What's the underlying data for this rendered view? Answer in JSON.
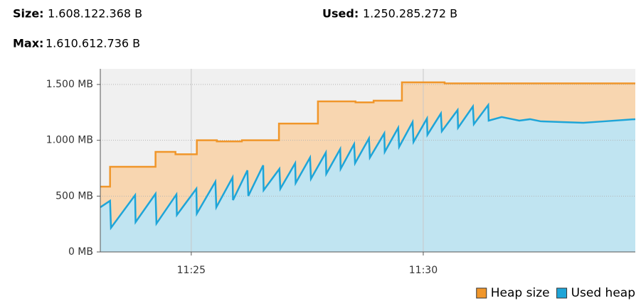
{
  "header": {
    "size_label": "Size:",
    "size_value": "1.608.122.368 B",
    "used_label": "Used:",
    "used_value": "1.250.285.272 B",
    "max_label": "Max:",
    "max_value": "1.610.612.736 B"
  },
  "chart_data": {
    "type": "line",
    "area": true,
    "xlim": [
      683.04,
      694.57
    ],
    "xticks": [
      {
        "value": 685,
        "label": "11:25"
      },
      {
        "value": 690,
        "label": "11:30"
      }
    ],
    "ylim": [
      0,
      1640
    ],
    "yticks": [
      {
        "value": 0,
        "label": "0 MB"
      },
      {
        "value": 500,
        "label": "500 MB"
      },
      {
        "value": 1000,
        "label": "1.000 MB"
      },
      {
        "value": 1500,
        "label": "1.500 MB"
      }
    ],
    "grid": true,
    "legend": "bottom-right",
    "series": [
      {
        "name": "Heap size",
        "color": "#f0962a",
        "fill": "#f8d3a8",
        "x": [
          683.04,
          683.25,
          683.25,
          684.23,
          684.23,
          684.66,
          684.66,
          685.12,
          685.12,
          685.55,
          685.55,
          686.09,
          686.09,
          686.89,
          686.89,
          687.73,
          687.73,
          688.54,
          688.54,
          688.93,
          688.93,
          689.54,
          689.54,
          690.46,
          690.46,
          694.57
        ],
        "values": [
          585,
          585,
          763,
          763,
          896,
          896,
          875,
          875,
          1000,
          1000,
          990,
          990,
          1000,
          1000,
          1150,
          1150,
          1348,
          1348,
          1340,
          1340,
          1355,
          1355,
          1519,
          1519,
          1510,
          1510
        ]
      },
      {
        "name": "Used heap",
        "color": "#1ea5d8",
        "fill": "#b9e6f8",
        "x": [
          683.04,
          683.25,
          683.27,
          683.79,
          683.8,
          684.23,
          684.25,
          684.68,
          684.69,
          685.11,
          685.12,
          685.52,
          685.54,
          685.89,
          685.9,
          686.21,
          686.23,
          686.55,
          686.56,
          686.9,
          686.92,
          687.24,
          687.25,
          687.56,
          687.58,
          687.9,
          687.91,
          688.21,
          688.22,
          688.51,
          688.53,
          688.83,
          688.85,
          689.16,
          689.17,
          689.46,
          689.48,
          689.77,
          689.79,
          690.08,
          690.09,
          690.38,
          690.4,
          690.74,
          690.75,
          691.07,
          691.09,
          691.4,
          691.41,
          691.69,
          691.92,
          692.07,
          692.3,
          692.53,
          692.99,
          693.45,
          693.91,
          694.57
        ],
        "values": [
          400,
          458,
          216,
          509,
          267,
          521,
          254,
          515,
          331,
          566,
          343,
          629,
          400,
          667,
          464,
          731,
          502,
          776,
          553,
          744,
          566,
          795,
          617,
          845,
          655,
          890,
          699,
          922,
          744,
          966,
          795,
          1017,
          845,
          1062,
          896,
          1112,
          941,
          1163,
          985,
          1195,
          1049,
          1240,
          1081,
          1271,
          1112,
          1303,
          1144,
          1316,
          1176,
          1208,
          1189,
          1176,
          1189,
          1170,
          1163,
          1157,
          1170,
          1189
        ]
      }
    ]
  }
}
